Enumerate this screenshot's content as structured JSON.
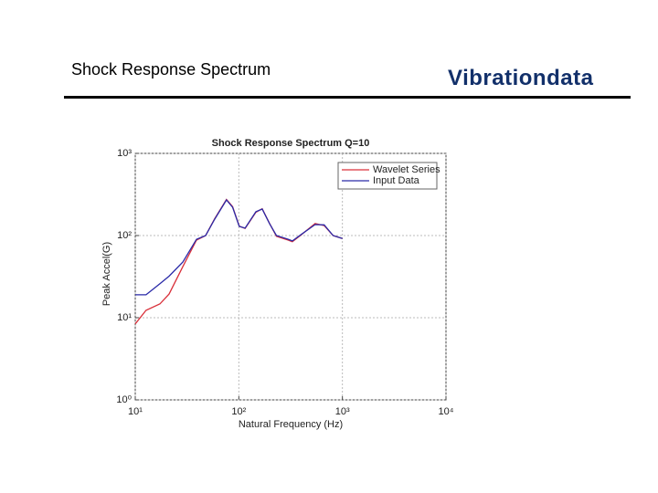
{
  "header": {
    "title": "Shock Response Spectrum",
    "brand": "Vibrationdata"
  },
  "chart_data": {
    "type": "line",
    "title": "Shock Response Spectrum Q=10",
    "x_label": "Natural Frequency (Hz)",
    "y_label": "Peak Accel(G)",
    "x_scale": "log",
    "y_scale": "log",
    "grid": true,
    "legend": "upper right",
    "xlim": [
      10,
      10000
    ],
    "ylim": [
      1,
      1000
    ],
    "xticks": [
      {
        "value": 10,
        "label": "10¹"
      },
      {
        "value": 100,
        "label": "10²"
      },
      {
        "value": 1000,
        "label": "10³"
      },
      {
        "value": 10000,
        "label": "10⁴"
      }
    ],
    "yticks": [
      {
        "value": 1,
        "label": "10⁰"
      },
      {
        "value": 10,
        "label": "10¹"
      },
      {
        "value": 100,
        "label": "10²"
      },
      {
        "value": 1000,
        "label": "10³"
      }
    ],
    "x": [
      10,
      12.7,
      17.3,
      21.2,
      28.8,
      39,
      47.8,
      58.5,
      76,
      87,
      101,
      115,
      146,
      168,
      198,
      231,
      300,
      329,
      400,
      545,
      666,
      814,
      1000
    ],
    "series": [
      {
        "name": "Wavelet Series",
        "color": "#d9303a",
        "values": [
          8.4,
          12.3,
          14.7,
          19.4,
          42,
          88,
          100,
          160,
          275,
          225,
          130,
          122,
          192,
          212,
          140,
          98,
          88,
          84,
          102,
          140,
          132,
          100,
          92
        ]
      },
      {
        "name": "Input Data",
        "color": "#2a2aa8",
        "values": [
          19,
          19,
          26,
          32,
          47.6,
          90,
          100,
          158,
          271,
          221,
          129,
          123,
          195,
          210,
          139,
          100,
          90,
          86,
          103,
          136,
          135,
          100,
          92
        ]
      }
    ]
  }
}
